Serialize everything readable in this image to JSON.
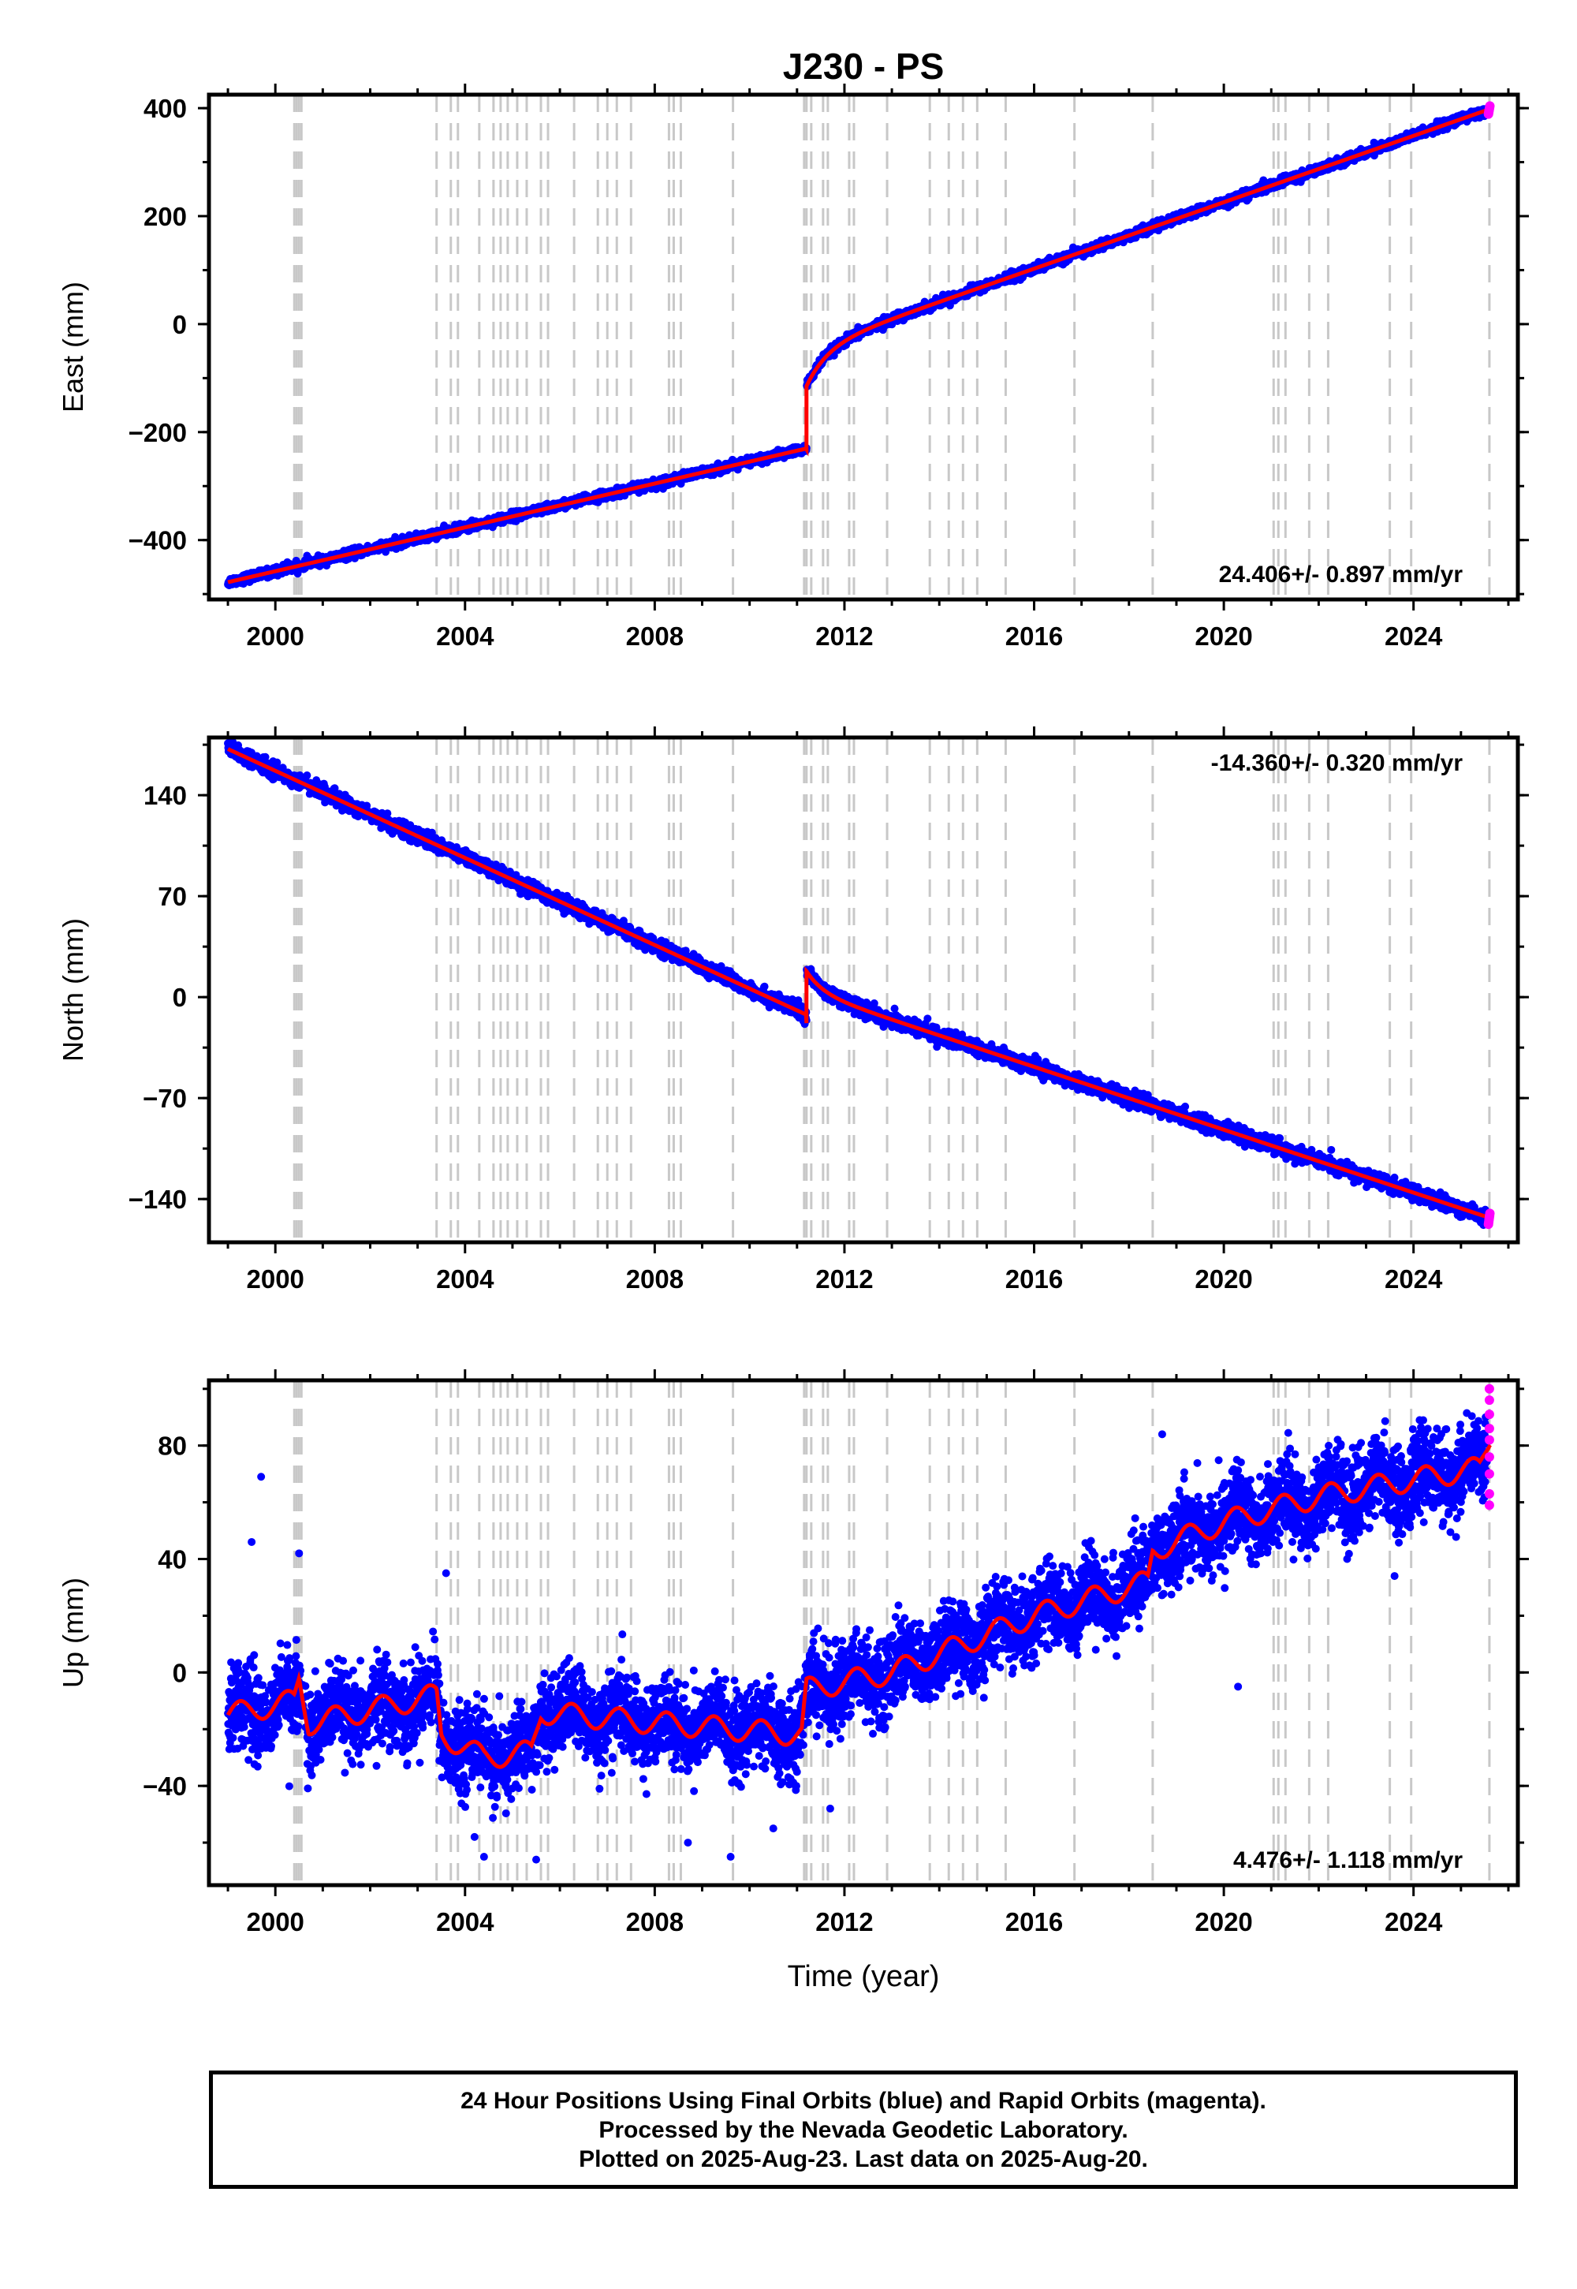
{
  "title": "J230 - PS",
  "xlabel": "Time (year)",
  "footer": {
    "line1": "24 Hour Positions Using Final Orbits (blue) and Rapid Orbits (magenta).",
    "line2": "Processed by the Nevada Geodetic Laboratory.",
    "line3": "Plotted on 2025-Aug-23. Last data on 2025-Aug-20."
  },
  "colors": {
    "final": "#0000ff",
    "rapid": "#ff00ff",
    "model": "#ff0000",
    "events": "#c8c8c8",
    "frame": "#000000"
  },
  "chart_data": [
    {
      "type": "scatter",
      "ylabel": "East (mm)",
      "xlim": [
        1998.6,
        2026.2
      ],
      "ylim": [
        -510,
        425
      ],
      "xticks": [
        2000,
        2004,
        2008,
        2012,
        2016,
        2020,
        2024
      ],
      "yticks": [
        -400,
        -200,
        0,
        200,
        400
      ],
      "rate_label": "24.406+/- 0.897 mm/yr",
      "rate_position": "bottom-right",
      "start_value": -478,
      "pre_slope": 20.3,
      "offset_time": 2011.2,
      "pre_event_value": -232,
      "post_event_value": -115,
      "post_slope": 24.406,
      "post_decay": {
        "amplitude": 70,
        "tau_years": 0.45
      },
      "end_value": 398,
      "noise_mm": 4,
      "seasonal_mm": 1
    },
    {
      "type": "scatter",
      "ylabel": "North (mm)",
      "xlim": [
        1998.6,
        2026.2
      ],
      "ylim": [
        -170,
        180
      ],
      "xticks": [
        2000,
        2004,
        2008,
        2012,
        2016,
        2020,
        2024
      ],
      "yticks": [
        -140,
        -70,
        0,
        70,
        140
      ],
      "rate_label": "-14.360+/- 0.320 mm/yr",
      "rate_position": "top-right",
      "start_value": 172,
      "pre_slope": -15.1,
      "offset_time": 2011.2,
      "pre_event_value": -18,
      "post_event_value": 18,
      "post_slope": -14.36,
      "post_decay": {
        "amplitude": -14,
        "tau_years": 0.35
      },
      "end_value": -153,
      "noise_mm": 2.5,
      "seasonal_mm": 1
    },
    {
      "type": "scatter",
      "ylabel": "Up (mm)",
      "xlim": [
        1998.6,
        2026.2
      ],
      "ylim": [
        -75,
        103
      ],
      "xticks": [
        2000,
        2004,
        2008,
        2012,
        2016,
        2020,
        2024
      ],
      "yticks": [
        -40,
        0,
        40,
        80
      ],
      "rate_label": "4.476+/- 1.118 mm/yr",
      "rate_position": "bottom-right",
      "model_knots": [
        [
          1999.0,
          -15
        ],
        [
          2000.4,
          -10
        ],
        [
          2000.5,
          -2
        ],
        [
          2000.7,
          -18
        ],
        [
          2003.4,
          -8
        ],
        [
          2003.5,
          -22
        ],
        [
          2004.4,
          -30
        ],
        [
          2005.4,
          -28
        ],
        [
          2005.6,
          -14
        ],
        [
          2007.5,
          -17
        ],
        [
          2011.1,
          -22
        ],
        [
          2011.2,
          -6
        ],
        [
          2013.0,
          0
        ],
        [
          2016.0,
          20
        ],
        [
          2018.4,
          32
        ],
        [
          2018.5,
          43
        ],
        [
          2020.0,
          53
        ],
        [
          2022.0,
          62
        ],
        [
          2024.0,
          68
        ],
        [
          2025.4,
          72
        ],
        [
          2025.6,
          82
        ]
      ],
      "seasonal_mm": 4,
      "noise_mm": 7,
      "rapid_points": [
        [
          2025.6,
          100
        ],
        [
          2025.6,
          96
        ],
        [
          2025.6,
          91
        ],
        [
          2025.6,
          86
        ],
        [
          2025.6,
          82
        ],
        [
          2025.6,
          76
        ],
        [
          2025.6,
          70
        ],
        [
          2025.6,
          63
        ],
        [
          2025.6,
          59
        ]
      ],
      "outliers": [
        [
          1999.7,
          69
        ],
        [
          1999.5,
          46
        ],
        [
          2000.5,
          42
        ],
        [
          2003.6,
          35
        ],
        [
          2004.2,
          -58
        ],
        [
          2004.4,
          -65
        ],
        [
          2004.7,
          -76
        ],
        [
          2005.5,
          -66
        ],
        [
          2008.7,
          -60
        ],
        [
          2009.6,
          -65
        ],
        [
          2010.5,
          -55
        ],
        [
          2011.7,
          -48
        ],
        [
          2018.7,
          84
        ],
        [
          2019.8,
          47
        ],
        [
          2021.7,
          48
        ],
        [
          2023.6,
          34
        ],
        [
          2022.6,
          40
        ],
        [
          2020.3,
          -5
        ],
        [
          2017.3,
          8
        ]
      ]
    }
  ],
  "event_lines": [
    2000.4,
    2000.45,
    2000.5,
    2000.55,
    2003.4,
    2003.7,
    2003.85,
    2004.3,
    2004.6,
    2004.75,
    2004.9,
    2005.1,
    2005.3,
    2005.6,
    2005.75,
    2006.3,
    2006.8,
    2007.0,
    2007.2,
    2007.5,
    2008.3,
    2008.4,
    2008.55,
    2009.65,
    2011.15,
    2011.2,
    2011.3,
    2011.55,
    2011.65,
    2012.1,
    2012.2,
    2012.9,
    2013.8,
    2014.2,
    2014.5,
    2014.8,
    2015.4,
    2016.85,
    2018.5,
    2021.05,
    2021.15,
    2021.3,
    2021.8,
    2022.2,
    2023.5,
    2023.95,
    2025.6
  ]
}
